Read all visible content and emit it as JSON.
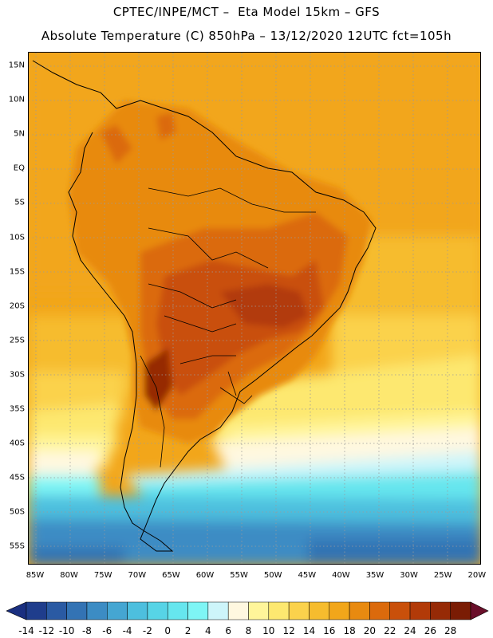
{
  "header": {
    "title_line1": "CPTEC/INPE/MCT –  Eta Model 15km – GFS",
    "title_line2": "Absolute Temperature (C) 850hPa – 13/12/2020 12UTC fct=105h"
  },
  "map": {
    "lat_labels": [
      "15N",
      "10N",
      "5N",
      "EQ",
      "5S",
      "10S",
      "15S",
      "20S",
      "25S",
      "30S",
      "35S",
      "40S",
      "45S",
      "50S",
      "55S"
    ],
    "lon_labels": [
      "85W",
      "80W",
      "75W",
      "70W",
      "65W",
      "60W",
      "55W",
      "50W",
      "45W",
      "40W",
      "35W",
      "30W",
      "25W",
      "20W"
    ]
  },
  "legend": {
    "labels": [
      "-14",
      "-12",
      "-10",
      "-8",
      "-6",
      "-4",
      "-2",
      "0",
      "2",
      "4",
      "6",
      "8",
      "10",
      "12",
      "14",
      "16",
      "18",
      "20",
      "22",
      "24",
      "26",
      "28"
    ],
    "colors": [
      "#1f3d8c",
      "#2a5aa3",
      "#3373b4",
      "#3c8cc4",
      "#45a6d2",
      "#4dbfde",
      "#57d4e6",
      "#66e6ee",
      "#7ef5f5",
      "#cdf5fa",
      "#fff8e0",
      "#fff59a",
      "#fde870",
      "#fbd24c",
      "#f6bc2e",
      "#f2a61a",
      "#e88a10",
      "#db6a0c",
      "#c9500a",
      "#b23a08",
      "#962a06",
      "#7a1c04"
    ],
    "under_color": "#1a2f80",
    "over_color": "#6a0f2a"
  }
}
